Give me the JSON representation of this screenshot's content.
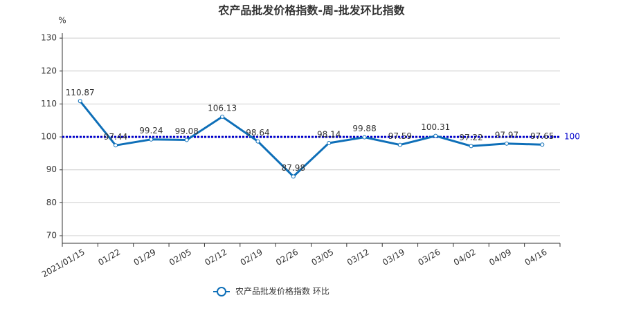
{
  "chart_data": {
    "type": "line",
    "title": "农产品批发价格指数-周-批发环比指数",
    "y_unit": "%",
    "categories": [
      "2021/01/15",
      "01/22",
      "01/29",
      "02/05",
      "02/12",
      "02/19",
      "02/26",
      "03/05",
      "03/12",
      "03/19",
      "03/26",
      "04/02",
      "04/09",
      "04/16"
    ],
    "series": [
      {
        "name": "农产品批发价格指数  环比",
        "color": "#0e6fb8",
        "values": [
          110.87,
          97.44,
          99.24,
          99.08,
          106.13,
          98.64,
          87.98,
          98.14,
          99.88,
          97.59,
          100.31,
          97.22,
          97.97,
          97.65
        ]
      }
    ],
    "ylim": [
      67.7,
      131.5
    ],
    "yticks": [
      70,
      80,
      90,
      100,
      110,
      120,
      130
    ],
    "grid": true,
    "reference_line": 100,
    "reference_color": "#0000cc"
  }
}
